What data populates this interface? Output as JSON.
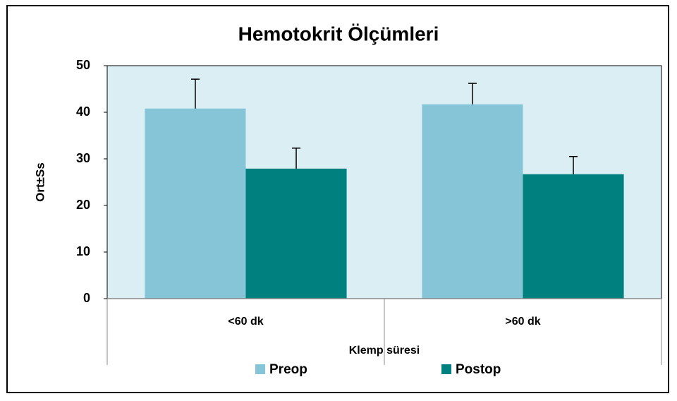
{
  "chart_data": {
    "type": "bar",
    "title": "Hemotokrit Ölçümleri",
    "x_label": "Klemp süresi",
    "y_label": "Ort±Ss",
    "categories": [
      "<60 dk",
      ">60 dk"
    ],
    "series": [
      {
        "name": "Preop",
        "color": "#85c5d7",
        "values": [
          40.8,
          41.7
        ],
        "errors": [
          6.3,
          4.5
        ]
      },
      {
        "name": "Postop",
        "color": "#00807f",
        "values": [
          27.9,
          26.7
        ],
        "errors": [
          4.4,
          3.8
        ]
      }
    ],
    "ylim": [
      0,
      50
    ],
    "yticks": [
      0,
      10,
      20,
      30,
      40,
      50
    ],
    "grid": false,
    "legend": "bottom"
  }
}
